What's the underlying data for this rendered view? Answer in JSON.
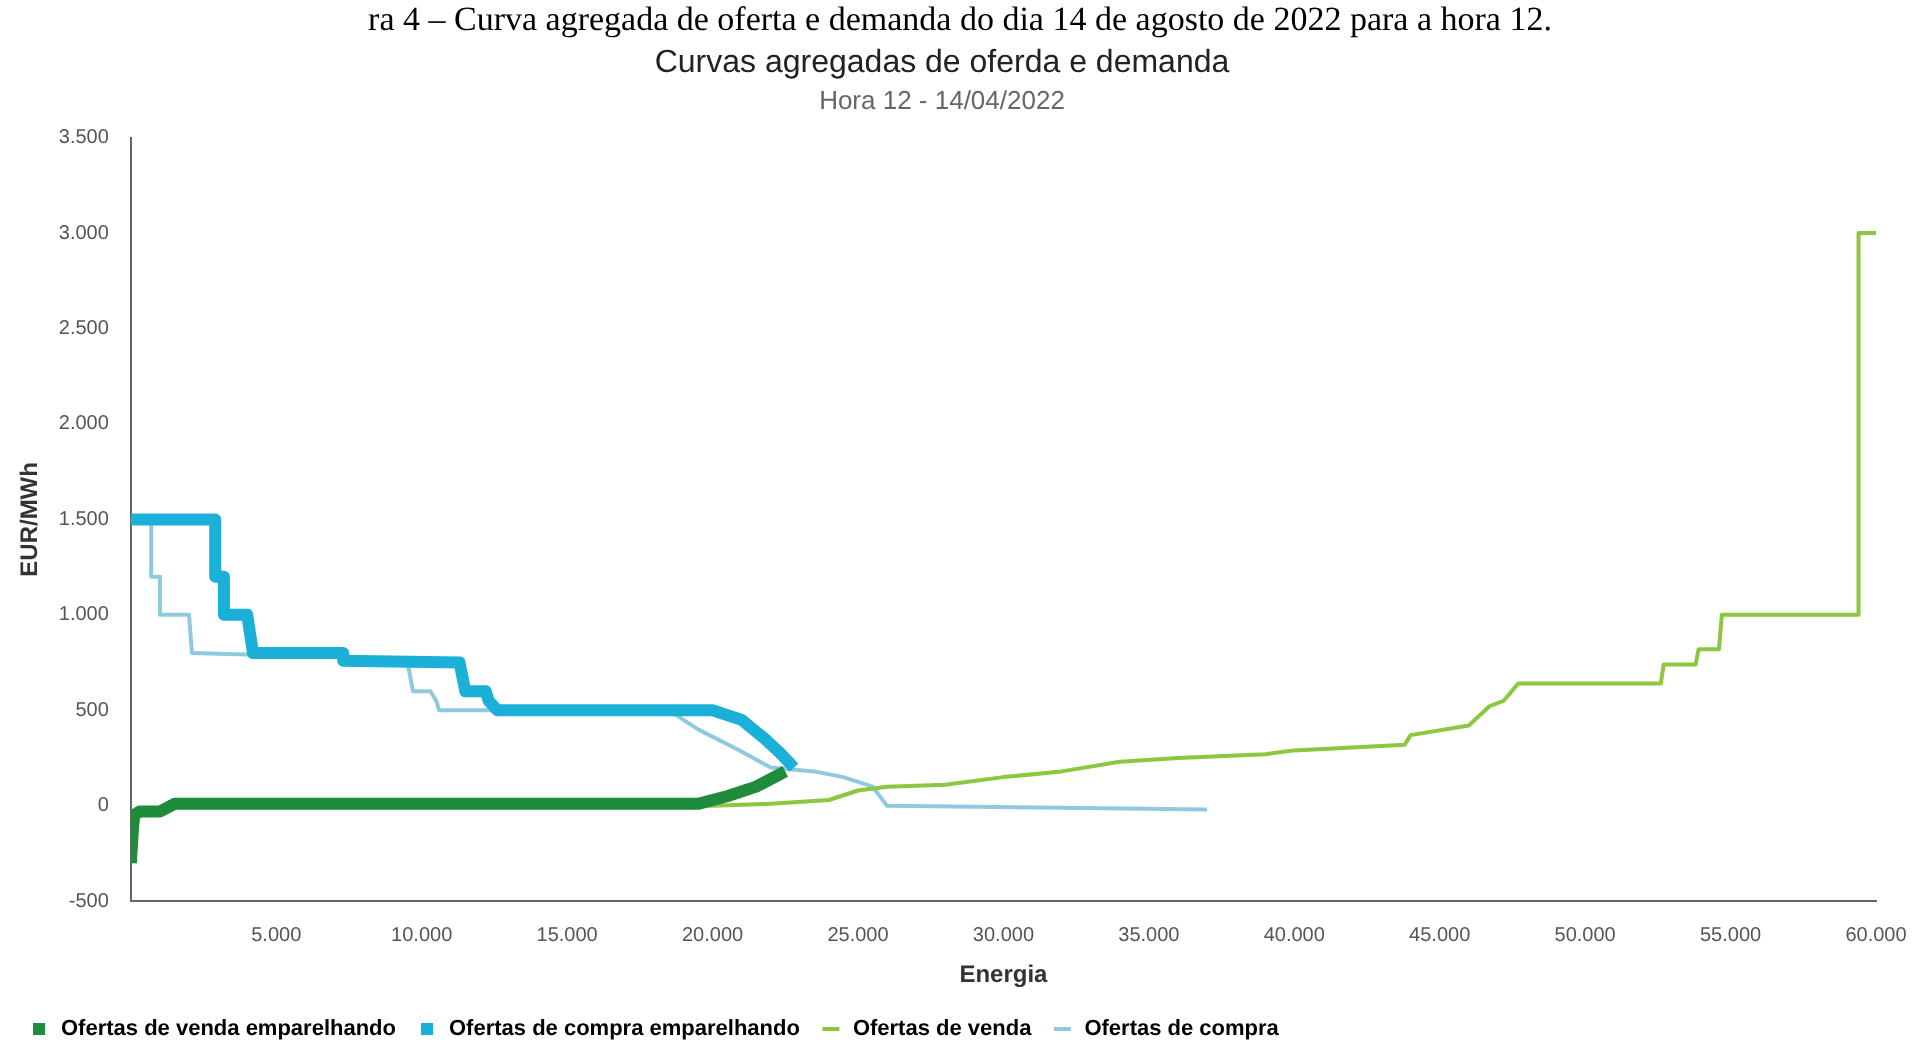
{
  "chart_data": {
    "type": "line",
    "title": "Curvas agregadas de oferda e demanda",
    "subtitle": "Hora 12 - 14/04/2022",
    "xlabel": "Energia",
    "ylabel": "EUR/MWh",
    "annotations": [
      "ra 4 – Curva agregada de oferta e demanda do dia 14 de agosto de 2022 para a hora 12."
    ],
    "xlim": [
      0,
      60000
    ],
    "ylim": [
      -500,
      3500
    ],
    "xticks": [
      {
        "value": 0,
        "label": null
      },
      {
        "value": 5000,
        "label": "5.000"
      },
      {
        "value": 10000,
        "label": "10.000"
      },
      {
        "value": 15000,
        "label": "15.000"
      },
      {
        "value": 20000,
        "label": "20.000"
      },
      {
        "value": 25000,
        "label": "25.000"
      },
      {
        "value": 30000,
        "label": "30.000"
      },
      {
        "value": 35000,
        "label": "35.000"
      },
      {
        "value": 40000,
        "label": "40.000"
      },
      {
        "value": 45000,
        "label": "45.000"
      },
      {
        "value": 50000,
        "label": "50.000"
      },
      {
        "value": 55000,
        "label": "55.000"
      },
      {
        "value": 60000,
        "label": "60.000"
      }
    ],
    "yticks": [
      -500,
      0,
      500,
      {
        "value": 1000,
        "label": "1.000"
      },
      {
        "value": 1500,
        "label": "1.500"
      },
      {
        "value": 2000,
        "label": "2.000"
      },
      {
        "value": 2500,
        "label": "2.500"
      },
      {
        "value": 3000,
        "label": "3.000"
      },
      {
        "value": 3500,
        "label": "3.500"
      }
    ],
    "grid": false,
    "legend": "bottom left",
    "marker": "none",
    "line_style": "solid",
    "series": [
      {
        "name": "Ofertas de venda emparelhando",
        "color": "#1e8c3a",
        "x": [
          0,
          100,
          300,
          1000,
          1500,
          19500,
          20500,
          21500,
          22500
        ],
        "values": [
          -300,
          -50,
          -30,
          -30,
          10,
          10,
          50,
          100,
          180
        ]
      },
      {
        "name": "Ofertas de compra emparelhando",
        "color": "#1ab0d8",
        "x": [
          0,
          2900,
          2900,
          3200,
          3200,
          4000,
          4200,
          7300,
          7300,
          11300,
          11500,
          12200,
          12300,
          12600,
          20000,
          21000,
          21800,
          22300,
          22800
        ],
        "values": [
          1500,
          1500,
          1200,
          1200,
          1000,
          1000,
          800,
          800,
          760,
          750,
          600,
          600,
          550,
          500,
          500,
          450,
          350,
          280,
          200
        ]
      },
      {
        "name": "Ofertas de venda",
        "color": "#8dc63f",
        "x": [
          0,
          300,
          1500,
          20000,
          22000,
          24000,
          25000,
          26000,
          28000,
          30000,
          32000,
          34000,
          36000,
          39000,
          40000,
          43800,
          44000,
          46000,
          46700,
          47200,
          47700,
          52600,
          52700,
          53800,
          53900,
          54600,
          54700,
          59400,
          59400,
          60000
        ],
        "values": [
          -300,
          -30,
          0,
          0,
          10,
          30,
          80,
          100,
          110,
          150,
          180,
          230,
          250,
          270,
          290,
          320,
          370,
          420,
          520,
          550,
          640,
          640,
          740,
          740,
          820,
          820,
          1000,
          1000,
          3000,
          3000
        ]
      },
      {
        "name": "Ofertas de compra",
        "color": "#8ec9e0",
        "x": [
          0,
          700,
          700,
          1000,
          1000,
          2000,
          2100,
          7000,
          9500,
          9700,
          10300,
          10500,
          10600,
          18500,
          19500,
          20800,
          22000,
          23500,
          24500,
          25500,
          26000,
          32000,
          37000
        ],
        "values": [
          1500,
          1500,
          1200,
          1200,
          1000,
          1000,
          800,
          780,
          760,
          600,
          600,
          550,
          500,
          500,
          400,
          300,
          200,
          180,
          150,
          100,
          0,
          -10,
          -20
        ]
      }
    ]
  }
}
